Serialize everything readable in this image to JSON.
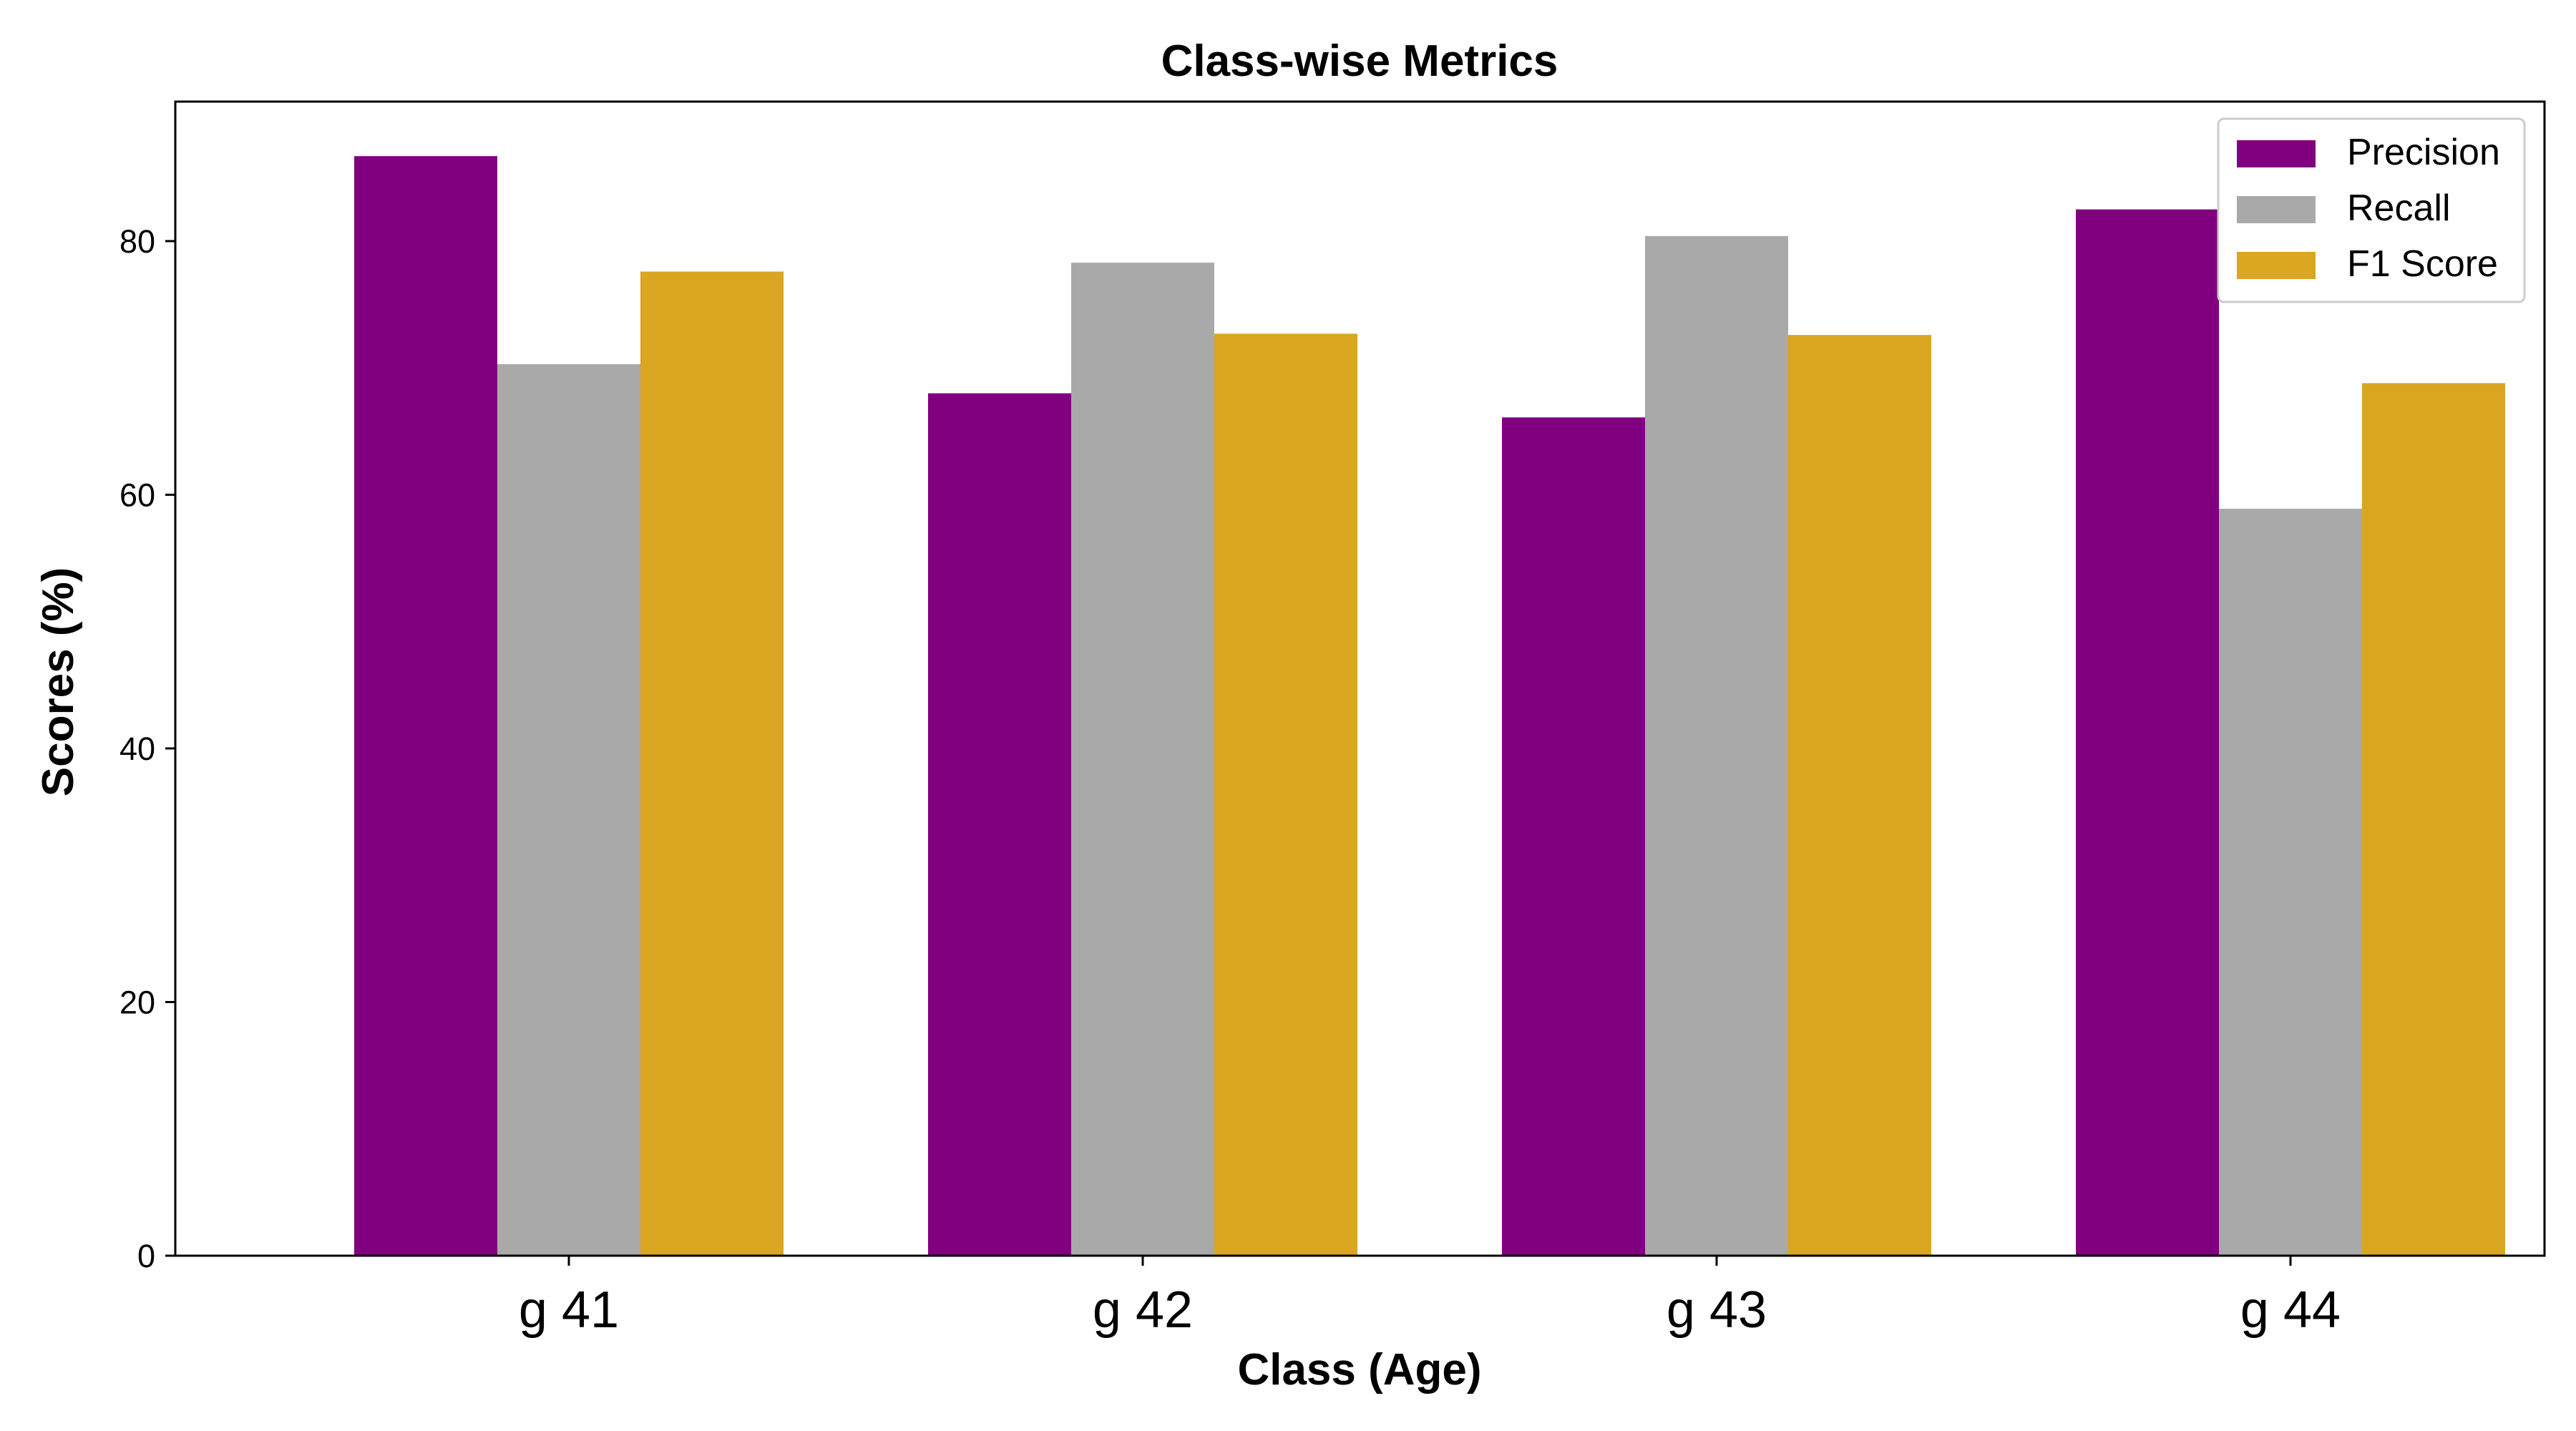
{
  "chart_data": {
    "type": "bar",
    "title": "Class-wise Metrics",
    "xlabel": "Class (Age)",
    "ylabel": "Scores (%)",
    "categories": [
      "g 41",
      "g 42",
      "g 43",
      "g 44"
    ],
    "series": [
      {
        "name": "Precision",
        "color": "#800080",
        "values": [
          86.7,
          68.0,
          66.1,
          82.5
        ]
      },
      {
        "name": "Recall",
        "color": "#a9a9a9",
        "values": [
          70.3,
          78.3,
          80.4,
          58.9
        ]
      },
      {
        "name": "F1 Score",
        "color": "#daa520",
        "values": [
          77.6,
          72.7,
          72.6,
          68.8
        ]
      }
    ],
    "ylim": [
      0,
      91
    ],
    "yticks": [
      0,
      20,
      40,
      60,
      80
    ],
    "grid": false,
    "legend_position": "top-right"
  }
}
